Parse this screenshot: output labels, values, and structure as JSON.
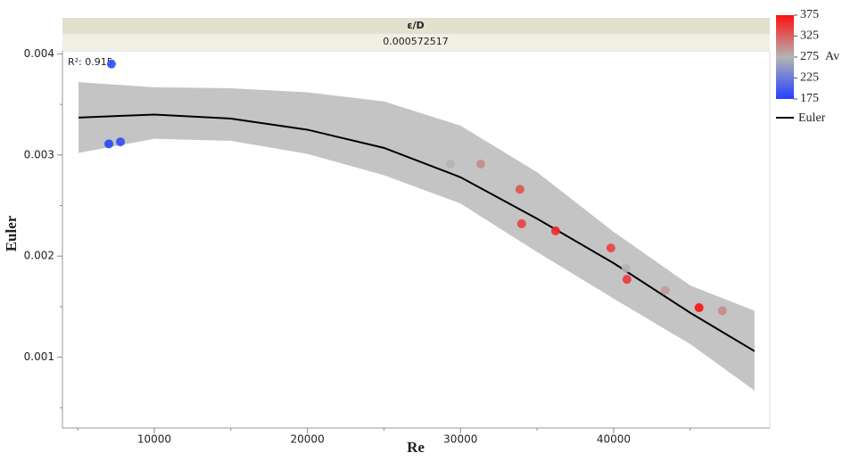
{
  "chart_data": {
    "type": "scatter",
    "header": {
      "label": "ε/D",
      "value": "0.000572517"
    },
    "annotation": "R²: 0.915",
    "x_label": "Re",
    "y_label": "Euler",
    "xlim": [
      4000,
      50200
    ],
    "ylim": [
      0.0003,
      0.00403
    ],
    "xticks": [
      10000,
      20000,
      30000,
      40000
    ],
    "xminor": [
      5000,
      15000,
      25000,
      35000,
      45000
    ],
    "yticks": [
      0.001,
      0.002,
      0.003,
      0.004
    ],
    "yminor": [
      0.0005,
      0.0015,
      0.0025,
      0.0035
    ],
    "x": [
      7200,
      7030,
      7790,
      29340,
      31320,
      33880,
      33990,
      36210,
      39820,
      40810,
      40870,
      43370,
      45580,
      47100
    ],
    "values": [
      0.0039,
      0.00311,
      0.00313,
      0.00291,
      0.00291,
      0.00266,
      0.00232,
      0.00225,
      0.00208,
      0.00188,
      0.00177,
      0.00166,
      0.00149,
      0.00146
    ],
    "av": [
      185,
      180,
      185,
      275,
      300,
      335,
      345,
      360,
      345,
      275,
      350,
      290,
      375,
      300
    ],
    "colorscale": {
      "label": "Av",
      "lim": [
        175,
        375
      ],
      "ticks": [
        175,
        225,
        275,
        325,
        375
      ],
      "colors": [
        "#2440ff",
        "#b4b4b4",
        "#ff1010"
      ]
    },
    "fit": {
      "name": "Euler",
      "color": "#000000",
      "band_color": "#c4c4c4",
      "x": [
        5050,
        10000,
        15000,
        20000,
        25000,
        30000,
        35000,
        40000,
        45000,
        49200
      ],
      "values": [
        0.00337,
        0.0034,
        0.00336,
        0.00325,
        0.00307,
        0.00278,
        0.00237,
        0.00193,
        0.00144,
        0.00106
      ],
      "upper": [
        0.00372,
        0.00367,
        0.00366,
        0.00362,
        0.00353,
        0.00329,
        0.00283,
        0.00224,
        0.00171,
        0.00146
      ],
      "lower": [
        0.00302,
        0.00316,
        0.00314,
        0.00301,
        0.0028,
        0.00252,
        0.00204,
        0.00158,
        0.00113,
        0.00067
      ]
    }
  }
}
